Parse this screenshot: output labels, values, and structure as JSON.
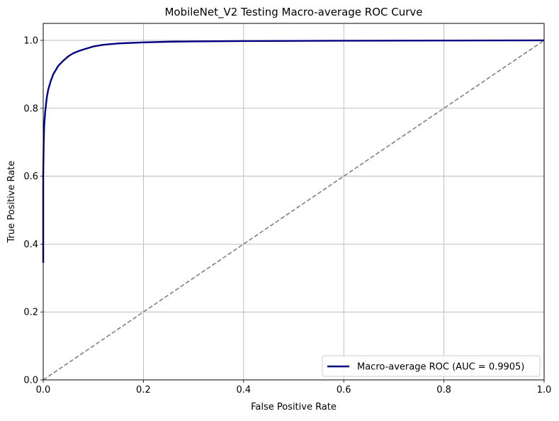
{
  "chart_data": {
    "type": "line",
    "title": "MobileNet_V2 Testing Macro-average ROC Curve",
    "xlabel": "False Positive Rate",
    "ylabel": "True Positive Rate",
    "xlim": [
      0.0,
      1.0
    ],
    "ylim": [
      0.0,
      1.05
    ],
    "xticks": [
      0.0,
      0.2,
      0.4,
      0.6,
      0.8,
      1.0
    ],
    "xtick_labels": [
      "0.0",
      "0.2",
      "0.4",
      "0.6",
      "0.8",
      "1.0"
    ],
    "yticks": [
      0.0,
      0.2,
      0.4,
      0.6,
      0.8,
      1.0
    ],
    "ytick_labels": [
      "0.0",
      "0.2",
      "0.4",
      "0.6",
      "0.8",
      "1.0"
    ],
    "grid": true,
    "legend_position": "lower-right",
    "series": [
      {
        "name": "Macro-average ROC (AUC = 0.9905)",
        "color": "#000080",
        "style": "solid",
        "x": [
          0.0,
          0.0,
          0.001,
          0.002,
          0.004,
          0.007,
          0.01,
          0.015,
          0.02,
          0.03,
          0.04,
          0.05,
          0.06,
          0.07,
          0.08,
          0.1,
          0.12,
          0.15,
          0.2,
          0.25,
          0.3,
          0.4,
          0.5,
          0.6,
          0.8,
          1.0
        ],
        "y": [
          0.345,
          0.6,
          0.7,
          0.75,
          0.79,
          0.83,
          0.855,
          0.88,
          0.9,
          0.925,
          0.94,
          0.953,
          0.962,
          0.968,
          0.973,
          0.982,
          0.987,
          0.991,
          0.994,
          0.996,
          0.997,
          0.998,
          0.9985,
          0.999,
          0.9995,
          1.0
        ]
      },
      {
        "name": "",
        "color": "#808080",
        "style": "dashed",
        "x": [
          0.0,
          1.0
        ],
        "y": [
          0.0,
          1.0
        ]
      }
    ]
  }
}
